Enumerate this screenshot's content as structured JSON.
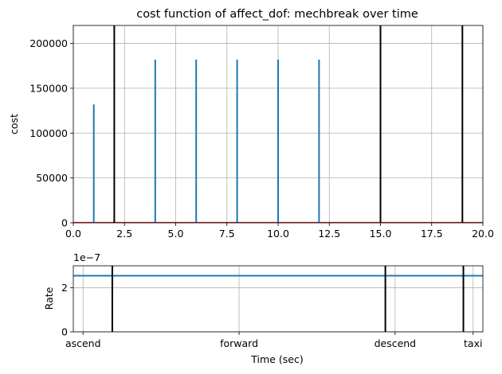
{
  "chart_data": [
    {
      "type": "line",
      "title": "cost function of affect_dof: mechbreak over time",
      "xlabel": "",
      "ylabel": "cost",
      "xlim": [
        0,
        20
      ],
      "ylim": [
        0,
        220000
      ],
      "x_ticks": [
        "0.0",
        "2.5",
        "5.0",
        "7.5",
        "10.0",
        "12.5",
        "15.0",
        "17.5",
        "20.0"
      ],
      "y_ticks": [
        "0",
        "50000",
        "100000",
        "150000",
        "200000"
      ],
      "grid": true,
      "series": [
        {
          "color": "#1f77b4",
          "spikes": [
            {
              "x": 1,
              "y": 132000
            },
            {
              "x": 4,
              "y": 182000
            },
            {
              "x": 6,
              "y": 182000
            },
            {
              "x": 8,
              "y": 182000
            },
            {
              "x": 10,
              "y": 182000
            },
            {
              "x": 12,
              "y": 182000
            },
            {
              "x": 15,
              "y": 132000
            }
          ]
        },
        {
          "color": "#d62728",
          "baseline_y": 0
        }
      ],
      "phase_boundaries": [
        2,
        15,
        19
      ],
      "boundary_color": "#000000"
    },
    {
      "type": "line",
      "title": "",
      "xlabel": "Time (sec)",
      "ylabel": "Rate",
      "offset_text": "1e−7",
      "xlim": [
        -0.5,
        20.5
      ],
      "ylim": [
        0,
        3
      ],
      "y_ticks": [
        "0",
        "2"
      ],
      "x_categories": [
        {
          "label": "ascend",
          "x": 0
        },
        {
          "label": "forward",
          "x": 8
        },
        {
          "label": "descend",
          "x": 16
        },
        {
          "label": "taxi",
          "x": 20
        }
      ],
      "grid": true,
      "series": [
        {
          "color": "#1f77b4",
          "constant_value": 2.55
        }
      ],
      "phase_boundaries": [
        1.5,
        15.5,
        19.5
      ],
      "boundary_color": "#000000"
    }
  ]
}
